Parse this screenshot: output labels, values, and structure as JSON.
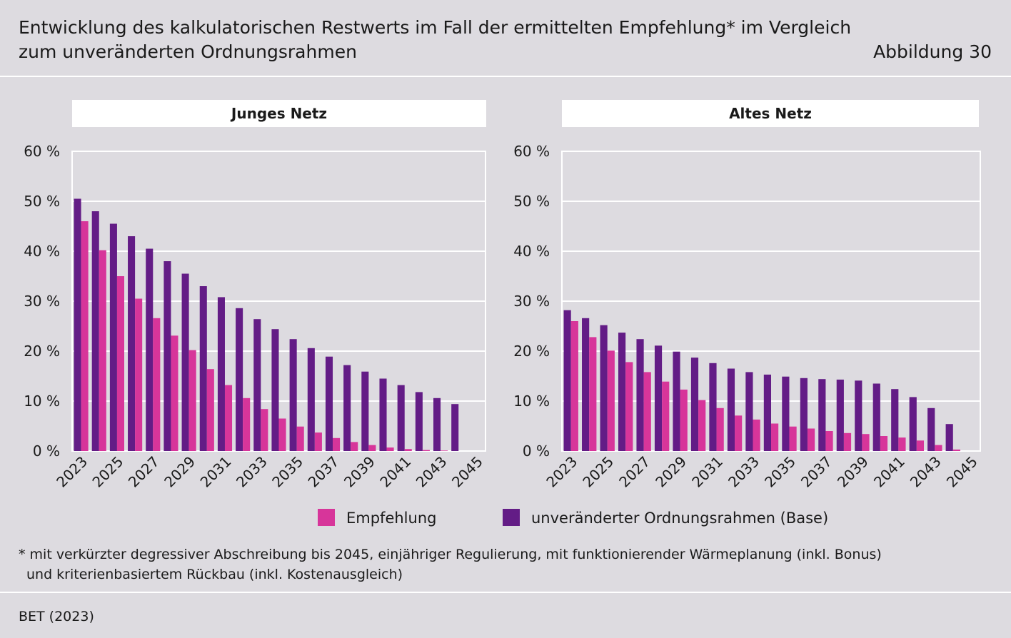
{
  "title_line1": "Entwicklung des kalkulatorischen Restwerts im Fall der ermittelten Empfehlung* im Vergleich",
  "title_line2": "zum unveränderten Ordnungsrahmen",
  "figure_label": "Abbildung 30",
  "colors": {
    "empfehlung": "#d7359a",
    "base": "#631c86",
    "background": "#dddbe0",
    "grid": "#ffffff"
  },
  "legend": {
    "empfehlung": "Empfehlung",
    "base": "unveränderter Ordnungsrahmen (Base)"
  },
  "footnote_line1": "* mit verkürzter degressiver Abschreibung bis 2045, einjähriger Regulierung, mit funktionierender Wärmeplanung (inkl. Bonus)",
  "footnote_line2": "und kriterienbasiertem Rückbau (inkl. Kostenausgleich)",
  "source": "BET (2023)",
  "chart_data": [
    {
      "type": "bar",
      "title": "Junges Netz",
      "x": [
        2023,
        2024,
        2025,
        2026,
        2027,
        2028,
        2029,
        2030,
        2031,
        2032,
        2033,
        2034,
        2035,
        2036,
        2037,
        2038,
        2039,
        2040,
        2041,
        2042,
        2043,
        2044,
        2045
      ],
      "tick_labels": [
        "2023",
        "2025",
        "2027",
        "2029",
        "2031",
        "2033",
        "2035",
        "2037",
        "2039",
        "2041",
        "2043",
        "2045"
      ],
      "y_tick_labels": [
        "0 %",
        "10 %",
        "20 %",
        "30 %",
        "40 %",
        "50 %",
        "60 %"
      ],
      "ylim": [
        0,
        60
      ],
      "series": [
        {
          "name": "unveränderter Ordnungsrahmen (Base)",
          "values": [
            50.5,
            48,
            45.5,
            43,
            40.5,
            38,
            35.5,
            33,
            30.8,
            28.6,
            26.4,
            24.4,
            22.4,
            20.6,
            18.9,
            17.2,
            15.9,
            14.5,
            13.2,
            11.8,
            10.6,
            9.4,
            null
          ]
        },
        {
          "name": "Empfehlung",
          "values": [
            46,
            40.2,
            35,
            30.5,
            26.6,
            23.1,
            20.2,
            16.4,
            13.2,
            10.6,
            8.4,
            6.5,
            4.9,
            3.7,
            2.6,
            1.8,
            1.2,
            0.7,
            0.4,
            0.2,
            0.1,
            null,
            null
          ]
        }
      ]
    },
    {
      "type": "bar",
      "title": "Altes Netz",
      "x": [
        2023,
        2024,
        2025,
        2026,
        2027,
        2028,
        2029,
        2030,
        2031,
        2032,
        2033,
        2034,
        2035,
        2036,
        2037,
        2038,
        2039,
        2040,
        2041,
        2042,
        2043,
        2044,
        2045
      ],
      "tick_labels": [
        "2023",
        "2025",
        "2027",
        "2029",
        "2031",
        "2033",
        "2035",
        "2037",
        "2039",
        "2041",
        "2043",
        "2045"
      ],
      "y_tick_labels": [
        "0 %",
        "10 %",
        "20 %",
        "30 %",
        "40 %",
        "50 %",
        "60 %"
      ],
      "ylim": [
        0,
        60
      ],
      "series": [
        {
          "name": "unveränderter Ordnungsrahmen (Base)",
          "values": [
            28.2,
            26.6,
            25.2,
            23.7,
            22.4,
            21.1,
            19.9,
            18.7,
            17.6,
            16.5,
            15.8,
            15.3,
            14.9,
            14.6,
            14.4,
            14.3,
            14.1,
            13.5,
            12.4,
            10.8,
            8.6,
            5.4,
            null
          ]
        },
        {
          "name": "Empfehlung",
          "values": [
            26,
            22.8,
            20.1,
            17.8,
            15.8,
            13.9,
            12.3,
            10.2,
            8.6,
            7.1,
            6.3,
            5.5,
            4.9,
            4.5,
            4,
            3.6,
            3.4,
            3,
            2.7,
            2.1,
            1.2,
            0.3,
            null
          ]
        }
      ]
    }
  ]
}
